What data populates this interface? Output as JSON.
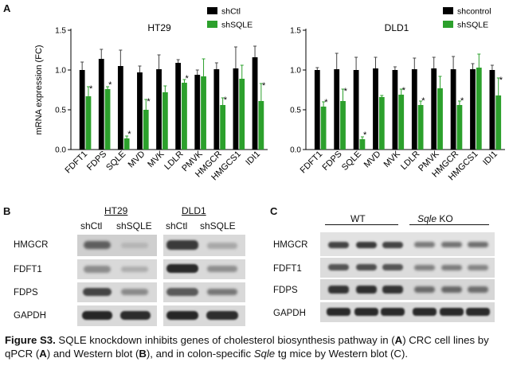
{
  "panels": {
    "a": "A",
    "b": "B",
    "c": "C"
  },
  "chart_data": [
    {
      "type": "bar",
      "title": "HT29",
      "ylabel": "mRNA expression (FC)",
      "ylim": [
        0,
        1.5
      ],
      "yticks": [
        "0.0",
        "0.5",
        "1.0",
        "1.5"
      ],
      "categories": [
        "FDFT1",
        "FDPS",
        "SQLE",
        "MVD",
        "MVK",
        "LDLR",
        "PMVK",
        "HMGCR",
        "HMGCS1",
        "IDI1"
      ],
      "series": [
        {
          "name": "shCtl",
          "color": "#000000",
          "values": [
            1.0,
            1.14,
            1.05,
            0.97,
            1.01,
            1.09,
            0.94,
            1.01,
            1.02,
            1.16
          ],
          "errors": [
            0.1,
            0.12,
            0.2,
            0.08,
            0.18,
            0.04,
            0.06,
            0.08,
            0.27,
            0.14
          ]
        },
        {
          "name": "shSQLE",
          "color": "#2ca02c",
          "values": [
            0.67,
            0.76,
            0.14,
            0.5,
            0.72,
            0.84,
            0.92,
            0.56,
            0.89,
            0.61
          ],
          "errors": [
            0.12,
            0.03,
            0.03,
            0.13,
            0.08,
            0.04,
            0.22,
            0.09,
            0.17,
            0.22
          ]
        }
      ],
      "significance": [
        true,
        true,
        true,
        true,
        false,
        true,
        false,
        true,
        false,
        true
      ]
    },
    {
      "type": "bar",
      "title": "DLD1",
      "ylim": [
        0,
        1.5
      ],
      "yticks": [
        "0.0",
        "0.5",
        "1.0",
        "1.5"
      ],
      "categories": [
        "FDFT1",
        "FDPS",
        "SQLE",
        "MVD",
        "MVK",
        "LDLR",
        "PMVK",
        "HMGCR",
        "HMGCS1",
        "IDI1"
      ],
      "series": [
        {
          "name": "shcontrol",
          "color": "#000000",
          "values": [
            1.0,
            1.01,
            1.0,
            1.02,
            1.0,
            1.01,
            1.02,
            1.01,
            1.01,
            1.0
          ],
          "errors": [
            0.03,
            0.2,
            0.16,
            0.14,
            0.04,
            0.14,
            0.14,
            0.16,
            0.07,
            0.06
          ]
        },
        {
          "name": "shSQLE",
          "color": "#2ca02c",
          "values": [
            0.54,
            0.61,
            0.13,
            0.66,
            0.69,
            0.56,
            0.77,
            0.56,
            1.03,
            0.68
          ],
          "errors": [
            0.06,
            0.15,
            0.03,
            0.02,
            0.07,
            0.05,
            0.15,
            0.05,
            0.17,
            0.22
          ]
        }
      ],
      "significance": [
        true,
        true,
        true,
        false,
        true,
        true,
        false,
        true,
        false,
        true
      ]
    }
  ],
  "blot_b": {
    "groups": [
      "HT29",
      "DLD1"
    ],
    "lanes": [
      "shCtl",
      "shSQLE",
      "shCtl",
      "shSQLE"
    ],
    "rows": [
      "HMGCR",
      "FDFT1",
      "FDPS",
      "GAPDH"
    ]
  },
  "blot_c": {
    "groups": [
      "WT",
      "KO"
    ],
    "ko_gene": "Sqle",
    "rows": [
      "HMGCR",
      "FDFT1",
      "FDPS",
      "GAPDH"
    ]
  },
  "caption": {
    "label": "Figure S3.",
    "text1": " SQLE knockdown inhibits genes of cholesterol biosynthesis pathway in (",
    "a1": "A",
    "text2": ") CRC cell lines by qPCR (",
    "a2": "A",
    "text3": ") and Western blot (",
    "b1": "B",
    "text4": "), and in colon-specific ",
    "gene": "Sqle",
    "text5": " tg mice by Western blot (C)."
  }
}
